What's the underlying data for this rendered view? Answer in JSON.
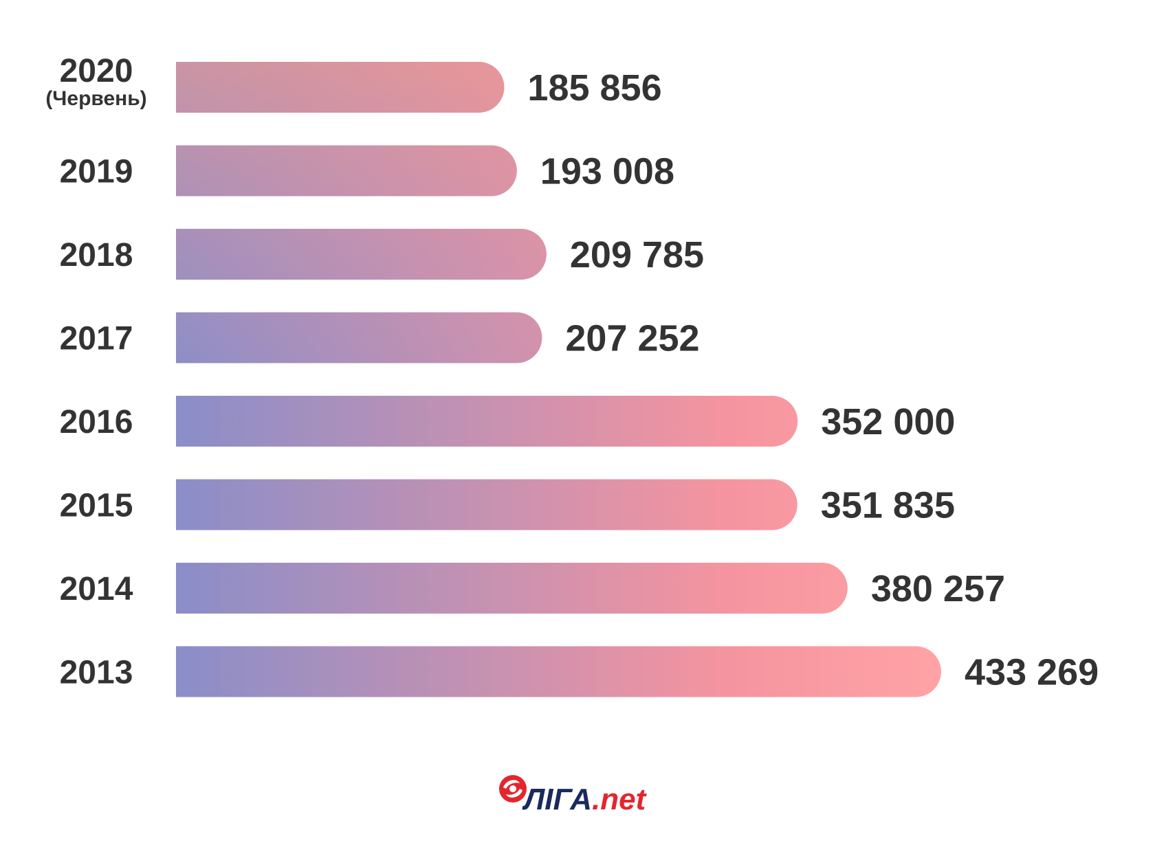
{
  "chart_data": {
    "type": "bar",
    "orientation": "horizontal",
    "categories": [
      "2020",
      "2019",
      "2018",
      "2017",
      "2016",
      "2015",
      "2014",
      "2013"
    ],
    "category_notes": [
      "(Червень)",
      "",
      "",
      "",
      "",
      "",
      "",
      ""
    ],
    "values": [
      185856,
      193008,
      209785,
      207252,
      352000,
      351835,
      380257,
      433269
    ],
    "value_labels": [
      "185 856",
      "193 008",
      "209 785",
      "207 252",
      "352 000",
      "351 835",
      "380 257",
      "433 269"
    ],
    "title": "",
    "xlabel": "",
    "ylabel": "",
    "xlim": [
      0,
      433269
    ],
    "grid": false,
    "legend": "none",
    "colors": {
      "bar_gradient_left": "#8A8EC8",
      "bar_gradient_mid": "#F5949F",
      "bar_gradient_right": "#FFA3A6",
      "bar_top_accent": "#FF9A86",
      "label_text": "#333333"
    }
  },
  "logo": {
    "brand": "ЛІГА",
    "suffix": ".net",
    "brand_color": "#1B2A5C",
    "suffix_color": "#E3262E",
    "icon": "liga-swirl-icon"
  }
}
